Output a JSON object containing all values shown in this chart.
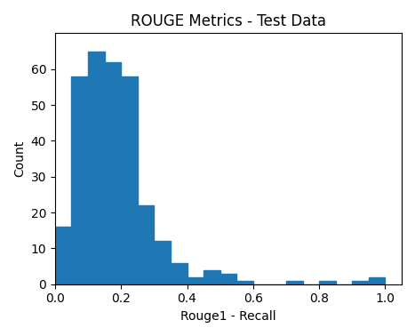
{
  "title": "ROUGE Metrics - Test Data",
  "xlabel": "Rouge1 - Recall",
  "ylabel": "Count",
  "bar_color": "#1f77b4",
  "bin_edges": [
    0.0,
    0.05,
    0.1,
    0.15,
    0.2,
    0.25,
    0.3,
    0.35,
    0.4,
    0.45,
    0.5,
    0.55,
    0.6,
    0.65,
    0.7,
    0.75,
    0.8,
    0.85,
    0.9,
    0.95,
    1.0
  ],
  "counts": [
    16,
    58,
    65,
    62,
    58,
    22,
    12,
    6,
    2,
    4,
    3,
    1,
    0,
    0,
    1,
    0,
    1,
    0,
    1,
    2
  ],
  "xlim": [
    0.0,
    1.05
  ],
  "ylim": [
    0,
    70
  ],
  "xticks": [
    0.0,
    0.2,
    0.4,
    0.6,
    0.8,
    1.0
  ],
  "yticks": [
    0,
    10,
    20,
    30,
    40,
    50,
    60
  ],
  "figsize": [
    4.67,
    3.78
  ],
  "dpi": 100
}
